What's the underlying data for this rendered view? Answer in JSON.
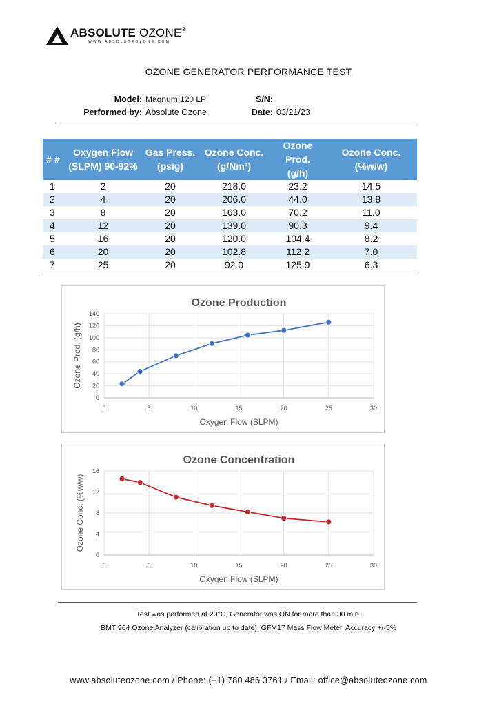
{
  "header": {
    "brand_bold": "ABSOLUTE",
    "brand_light": "OZONE",
    "brand_mark": "®",
    "website_small": "WWW.ABSOLUTEOZONE.COM"
  },
  "document": {
    "title": "OZONE GENERATOR PERFORMANCE TEST"
  },
  "meta": {
    "model_label": "Model:",
    "model_value": "Magnum 120 LP",
    "sn_label": "S/N:",
    "sn_value": "",
    "performed_label": "Performed by:",
    "performed_value": "Absolute Ozone",
    "date_label": "Date:",
    "date_value": "03/21/23"
  },
  "table": {
    "headers": [
      [
        "# #",
        ""
      ],
      [
        "Oxygen Flow",
        "(SLPM) 90-92%"
      ],
      [
        "Gas Press.",
        "(psig)"
      ],
      [
        "Ozone Conc.",
        "(g/Nm³)"
      ],
      [
        "Ozone Prod.",
        "(g/h)"
      ],
      [
        "Ozone Conc.",
        "(%w/w)"
      ]
    ],
    "rows": [
      [
        "1",
        "2",
        "20",
        "218.0",
        "23.2",
        "14.5"
      ],
      [
        "2",
        "4",
        "20",
        "206.0",
        "44.0",
        "13.8"
      ],
      [
        "3",
        "8",
        "20",
        "163.0",
        "70.2",
        "11.0"
      ],
      [
        "4",
        "12",
        "20",
        "139.0",
        "90.3",
        "9.4"
      ],
      [
        "5",
        "16",
        "20",
        "120.0",
        "104.4",
        "8.2"
      ],
      [
        "6",
        "20",
        "20",
        "102.8",
        "112.2",
        "7.0"
      ],
      [
        "7",
        "25",
        "20",
        "92.0",
        "125.9",
        "6.3"
      ]
    ]
  },
  "chart_data": [
    {
      "type": "line",
      "title": "Ozone Production",
      "xlabel": "Oxygen Flow (SLPM)",
      "ylabel": "Ozone Prod. (g/h)",
      "xlim": [
        0,
        30
      ],
      "ylim": [
        0,
        140
      ],
      "xticks": [
        0,
        5,
        10,
        15,
        20,
        25,
        30
      ],
      "yticks": [
        0,
        20,
        40,
        60,
        80,
        100,
        120,
        140
      ],
      "grid": true,
      "color": "#4472c4",
      "x": [
        2,
        4,
        8,
        12,
        16,
        20,
        25
      ],
      "y": [
        23.2,
        44.0,
        70.2,
        90.3,
        104.4,
        112.2,
        125.9
      ]
    },
    {
      "type": "line",
      "title": "Ozone Concentration",
      "xlabel": "Oxygen Flow (SLPM)",
      "ylabel": "Ozone Conc. (%w/w)",
      "xlim": [
        0,
        30
      ],
      "ylim": [
        0,
        16
      ],
      "xticks": [
        0,
        5,
        10,
        15,
        20,
        25,
        30
      ],
      "yticks": [
        0,
        4,
        8,
        12,
        16
      ],
      "grid": true,
      "color": "#c0282d",
      "x": [
        2,
        4,
        8,
        12,
        16,
        20,
        25
      ],
      "y": [
        14.5,
        13.8,
        11.0,
        9.4,
        8.2,
        7.0,
        6.3
      ]
    }
  ],
  "notes": {
    "line1": "Test was performed at 20°C, Generator was ON for more than 30 min.",
    "line2": "BMT 964 Ozone Analyzer (calibration up to date), GFM17 Mass Flow Meter, Accuracy +/-5%"
  },
  "footer": {
    "contact": "www.absoluteozone.com / Phone: (+1) 780 486 3761 / Email: office@absoluteozone.com"
  }
}
